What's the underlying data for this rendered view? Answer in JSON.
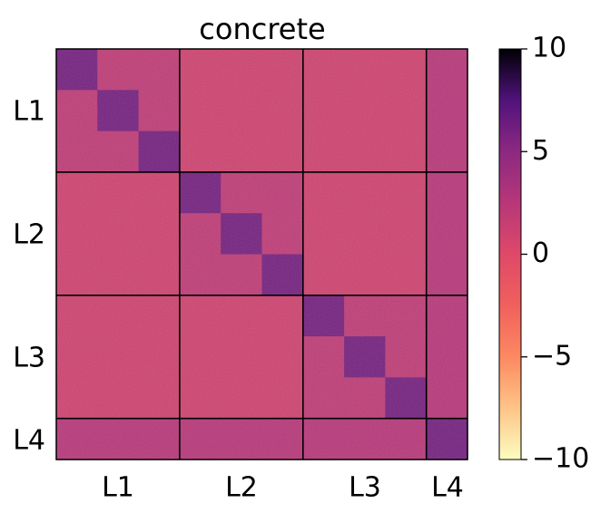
{
  "chart_data": {
    "type": "heatmap",
    "title": "concrete",
    "xlabel": "",
    "ylabel": "",
    "row_labels": [
      "L1",
      "L2",
      "L3",
      "L4"
    ],
    "col_labels": [
      "L1",
      "L2",
      "L3",
      "L4"
    ],
    "group_sizes": [
      3,
      3,
      3,
      1
    ],
    "block_diagonal_level": 6,
    "off_diagonal_level": 1,
    "colorbar": {
      "colormap": "magma_r",
      "min": -10,
      "max": 10,
      "ticks": [
        -10,
        -5,
        0,
        5,
        10
      ],
      "tick_labels": [
        "−10",
        "−5",
        "0",
        "5",
        "10"
      ]
    },
    "grid": false,
    "colors": {
      "low": "#fcfdbf",
      "mid": "#e05a6d",
      "high": "#000004",
      "separator": "#000000"
    }
  }
}
